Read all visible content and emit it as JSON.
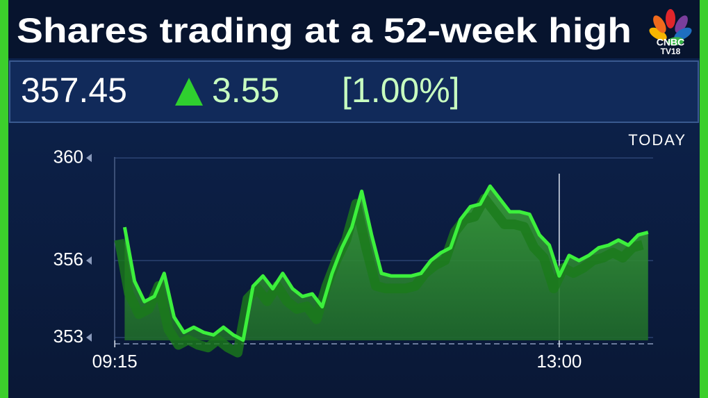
{
  "header": {
    "title": "Shares trading at a 52-week high",
    "logo_top": "CNBC",
    "logo_bottom": "TV18"
  },
  "quote": {
    "price": "357.45",
    "change": "3.55",
    "percent": "[1.00%]"
  },
  "chart_data": {
    "type": "line",
    "period_label": "TODAY",
    "color": "#3cf03c",
    "grid": true,
    "x": [
      "09:20",
      "09:25",
      "09:30",
      "09:35",
      "09:40",
      "09:45",
      "09:50",
      "09:55",
      "10:00",
      "10:05",
      "10:10",
      "10:15",
      "10:20",
      "10:25",
      "10:30",
      "10:35",
      "10:40",
      "10:45",
      "10:50",
      "10:55",
      "11:00",
      "11:05",
      "11:10",
      "11:15",
      "11:20",
      "11:25",
      "11:30",
      "11:35",
      "11:40",
      "11:45",
      "11:50",
      "11:55",
      "12:00",
      "12:05",
      "12:10",
      "12:15",
      "12:20",
      "12:25",
      "12:30",
      "12:35",
      "12:40",
      "12:45",
      "12:50",
      "12:55",
      "13:00",
      "13:05",
      "13:10",
      "13:15",
      "13:20",
      "13:25",
      "13:30",
      "13:35",
      "13:40",
      "13:45"
    ],
    "values": [
      357.3,
      355.2,
      354.4,
      354.6,
      355.5,
      353.8,
      353.2,
      353.4,
      353.2,
      353.1,
      353.4,
      353.1,
      352.9,
      355.0,
      355.4,
      354.9,
      355.5,
      354.9,
      354.6,
      354.7,
      354.2,
      355.5,
      356.5,
      357.3,
      358.7,
      357.0,
      355.5,
      355.4,
      355.4,
      355.4,
      355.5,
      356.0,
      356.3,
      356.5,
      357.6,
      358.1,
      358.2,
      358.9,
      358.4,
      357.9,
      357.9,
      357.8,
      357.0,
      356.6,
      355.4,
      356.2,
      356.0,
      356.2,
      356.5,
      356.6,
      356.8,
      356.6,
      357.0,
      357.1
    ],
    "xlim": [
      "09:10",
      "13:50"
    ],
    "xticks": [
      "09:15",
      "13:00"
    ],
    "ylim": [
      352.7,
      360.2
    ],
    "yticks": [
      360,
      356,
      353
    ]
  }
}
